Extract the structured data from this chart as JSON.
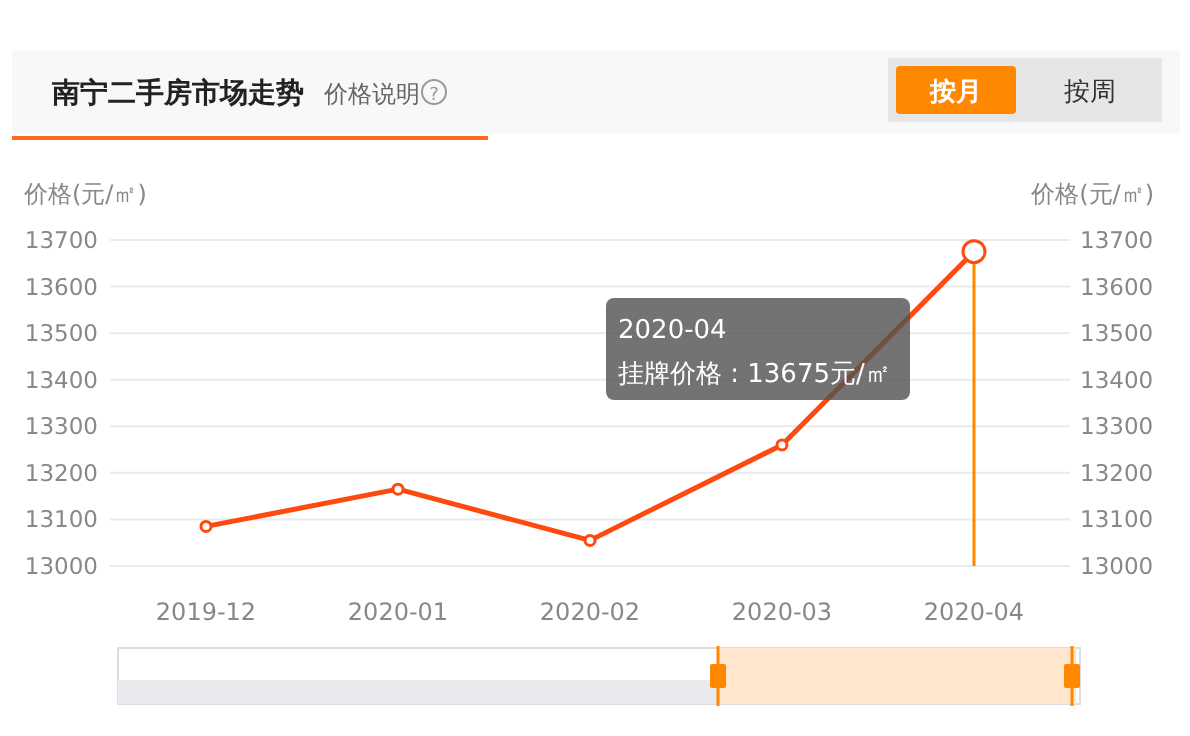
{
  "chart_data": {
    "type": "line",
    "title": "南宁二手房市场走势",
    "annotations": [
      "价格说明",
      "?",
      "2020-04\n挂牌价格 : 13675元/㎡",
      "按月",
      "按周"
    ],
    "categories": [
      "2019-12",
      "2020-01",
      "2020-02",
      "2020-03",
      "2020-04"
    ],
    "series": [
      {
        "color": "#ff4a0f",
        "values": [
          13085,
          13165,
          13055,
          13260,
          13675
        ]
      }
    ],
    "ylabel": "价格(元/㎡)",
    "y2label": "价格(元/㎡)",
    "ylim": [
      13000,
      13700
    ],
    "yticks": [
      13000,
      13100,
      13200,
      13300,
      13400,
      13500,
      13600,
      13700
    ],
    "y2lim": [
      13000,
      13700
    ],
    "y2ticks": [
      13000,
      13100,
      13200,
      13300,
      13400,
      13500,
      13600,
      13700
    ],
    "ref_lines": [
      {
        "axis": "x",
        "value": "2020-04",
        "color": "#ff8800"
      }
    ],
    "marker": "circle",
    "grid": "y"
  }
}
